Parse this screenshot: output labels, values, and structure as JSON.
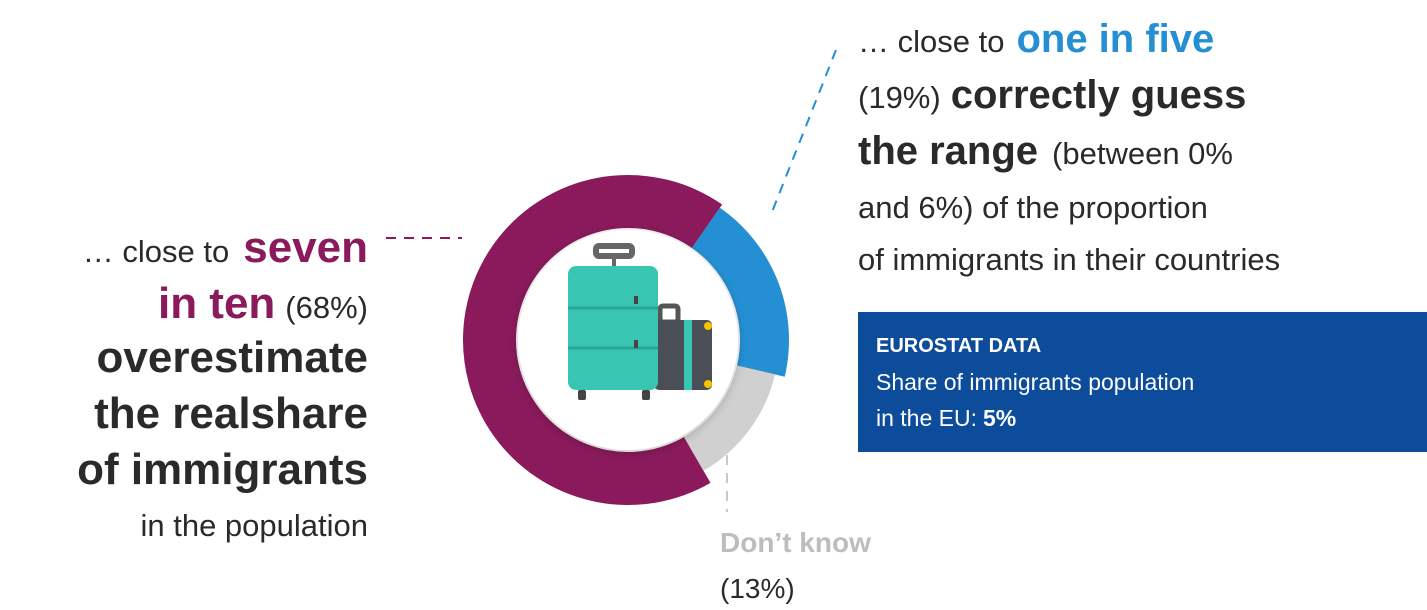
{
  "chart_data": {
    "type": "donut",
    "values": [
      68,
      19,
      13
    ],
    "value_labels": [
      "(68%)",
      "(19%)",
      "(13%)"
    ],
    "colors": [
      "#8a1a5c",
      "#2490d3",
      "#d0d0d0"
    ],
    "annotations": {
      "left": [
        "… close to",
        "seven",
        "in ten",
        "overestimate",
        "the realshare",
        "of immigrants",
        "in the population"
      ],
      "right": [
        "… close to",
        "one in five",
        "correctly guess",
        "the range",
        "(between 0%",
        "and 6%) of the proportion",
        "of immigrants in their countries"
      ],
      "bottom": [
        "Don’t know"
      ]
    }
  },
  "info_box": {
    "title": "EUROSTAT DATA",
    "lines": [
      "Share of immigrants population",
      "in the EU:"
    ],
    "value": "5%"
  }
}
